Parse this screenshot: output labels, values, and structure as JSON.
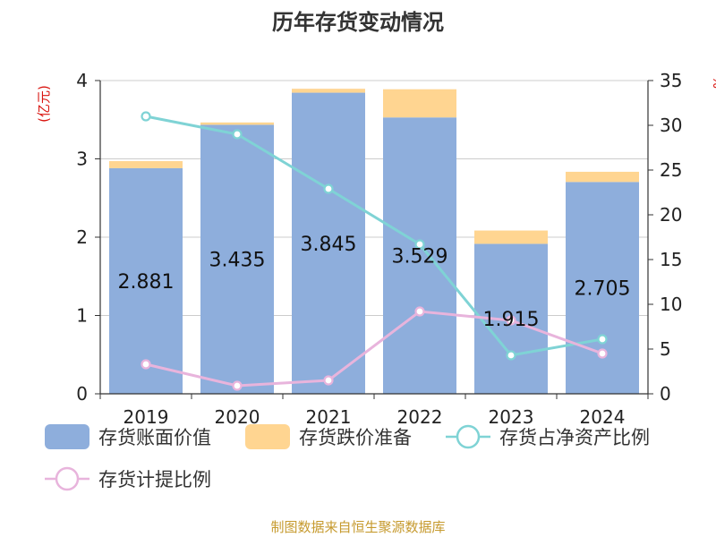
{
  "title": "历年存货变动情况",
  "source": "制图数据来自恒生聚源数据库",
  "chart_data": {
    "type": "bar",
    "categories": [
      "2019",
      "2020",
      "2021",
      "2022",
      "2023",
      "2024"
    ],
    "y_left": {
      "unit": "(亿元)",
      "ylim": [
        0,
        4
      ],
      "ticks": [
        0,
        1,
        2,
        3,
        4
      ]
    },
    "y_right": {
      "unit": "%",
      "ylim": [
        0,
        35
      ],
      "ticks": [
        0,
        5,
        10,
        15,
        20,
        25,
        30,
        35
      ]
    },
    "grid": true,
    "legend_position": "bottom",
    "series": [
      {
        "name": "存货账面价值",
        "kind": "bar",
        "axis": "left",
        "color": "#8eaedc",
        "values": [
          2.881,
          3.435,
          3.845,
          3.529,
          1.915,
          2.705
        ],
        "labels": [
          "2.881",
          "3.435",
          "3.845",
          "3.529",
          "1.915",
          "2.705"
        ]
      },
      {
        "name": "存货跌价准备",
        "kind": "bar",
        "axis": "left",
        "color": "#ffd591",
        "values": [
          0.09,
          0.03,
          0.05,
          0.36,
          0.17,
          0.13
        ]
      },
      {
        "name": "存货占净资产比例",
        "kind": "line",
        "axis": "right",
        "color": "#7fd3d5",
        "values": [
          31.0,
          29.0,
          22.9,
          16.7,
          4.3,
          6.1
        ]
      },
      {
        "name": "存货计提比例",
        "kind": "line",
        "axis": "right",
        "color": "#e8b4dc",
        "values": [
          3.3,
          0.9,
          1.5,
          9.2,
          8.2,
          4.5
        ]
      }
    ]
  }
}
